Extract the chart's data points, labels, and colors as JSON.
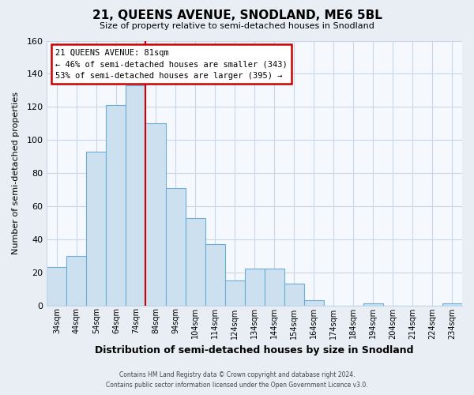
{
  "title": "21, QUEENS AVENUE, SNODLAND, ME6 5BL",
  "subtitle": "Size of property relative to semi-detached houses in Snodland",
  "xlabel": "Distribution of semi-detached houses by size in Snodland",
  "ylabel": "Number of semi-detached properties",
  "footer_line1": "Contains HM Land Registry data © Crown copyright and database right 2024.",
  "footer_line2": "Contains public sector information licensed under the Open Government Licence v3.0.",
  "bar_labels": [
    "34sqm",
    "44sqm",
    "54sqm",
    "64sqm",
    "74sqm",
    "84sqm",
    "94sqm",
    "104sqm",
    "114sqm",
    "124sqm",
    "134sqm",
    "144sqm",
    "154sqm",
    "164sqm",
    "174sqm",
    "184sqm",
    "194sqm",
    "204sqm",
    "214sqm",
    "224sqm",
    "234sqm"
  ],
  "bar_values": [
    23,
    30,
    93,
    121,
    133,
    110,
    71,
    53,
    37,
    15,
    22,
    22,
    13,
    3,
    0,
    0,
    1,
    0,
    0,
    0,
    1
  ],
  "bar_color": "#cce0f0",
  "bar_edge_color": "#6aaed6",
  "highlight_color": "#cc0000",
  "annotation_title": "21 QUEENS AVENUE: 81sqm",
  "annotation_line1": "← 46% of semi-detached houses are smaller (343)",
  "annotation_line2": "53% of semi-detached houses are larger (395) →",
  "annotation_box_color": "#ffffff",
  "annotation_box_edge": "#cc0000",
  "ylim": [
    0,
    160
  ],
  "yticks": [
    0,
    20,
    40,
    60,
    80,
    100,
    120,
    140,
    160
  ],
  "background_color": "#e8eef4",
  "plot_bg_color": "#f5f8fc",
  "grid_color": "#c8d8e8"
}
